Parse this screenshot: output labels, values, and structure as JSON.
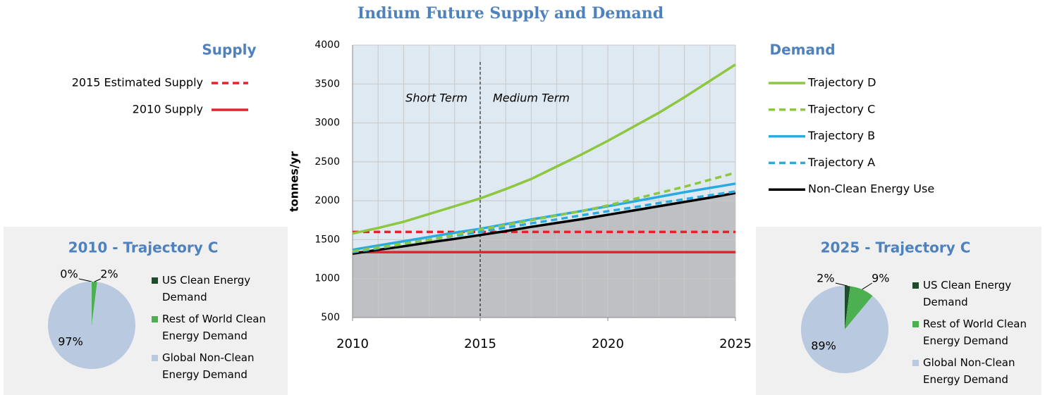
{
  "chart_data": [
    {
      "type": "line",
      "title": "Indium Future Supply and Demand",
      "supply_title": "Supply",
      "demand_title": "Demand",
      "ylabel": "tonnes/yr",
      "x": [
        2010,
        2011,
        2012,
        2013,
        2014,
        2015,
        2016,
        2017,
        2018,
        2019,
        2020,
        2021,
        2022,
        2023,
        2024,
        2025
      ],
      "xlim": [
        2010,
        2025
      ],
      "xticks": [
        2010,
        2015,
        2020,
        2025
      ],
      "ylim": [
        500,
        4000
      ],
      "yticks": [
        500,
        1000,
        1500,
        2000,
        2500,
        3000,
        3500,
        4000
      ],
      "grid": true,
      "divider_x": 2015,
      "annotations": [
        "Short Term",
        "Medium Term"
      ],
      "series": [
        {
          "name": "2015 Estimated Supply",
          "color": "#e0242b",
          "style": "dashed",
          "values": [
            1600,
            1600,
            1600,
            1600,
            1600,
            1600,
            1600,
            1600,
            1600,
            1600,
            1600,
            1600,
            1600,
            1600,
            1600,
            1600
          ]
        },
        {
          "name": "2010 Supply",
          "color": "#e0242b",
          "style": "solid",
          "values": [
            1340,
            1340,
            1340,
            1340,
            1340,
            1340,
            1340,
            1340,
            1340,
            1340,
            1340,
            1340,
            1340,
            1340,
            1340,
            1340
          ]
        },
        {
          "name": "Trajectory D",
          "color": "#8dc63f",
          "style": "solid",
          "values": [
            1580,
            1650,
            1730,
            1830,
            1930,
            2030,
            2150,
            2280,
            2440,
            2600,
            2770,
            2950,
            3130,
            3330,
            3540,
            3750
          ]
        },
        {
          "name": "Trajectory C",
          "color": "#8dc63f",
          "style": "dashed",
          "values": [
            1350,
            1400,
            1450,
            1500,
            1560,
            1630,
            1690,
            1750,
            1810,
            1870,
            1940,
            2020,
            2100,
            2180,
            2270,
            2360
          ]
        },
        {
          "name": "Trajectory B",
          "color": "#29abe2",
          "style": "solid",
          "values": [
            1370,
            1425,
            1480,
            1535,
            1590,
            1640,
            1700,
            1760,
            1815,
            1870,
            1930,
            1990,
            2050,
            2110,
            2165,
            2220
          ]
        },
        {
          "name": "Trajectory A",
          "color": "#29abe2",
          "style": "dashed",
          "values": [
            1340,
            1390,
            1445,
            1500,
            1550,
            1600,
            1655,
            1710,
            1760,
            1815,
            1865,
            1915,
            1970,
            2020,
            2070,
            2120
          ]
        },
        {
          "name": "Non-Clean Energy Use",
          "color": "#000000",
          "style": "solid",
          "area_color": "#bfc0c4",
          "values": [
            1320,
            1370,
            1415,
            1465,
            1510,
            1560,
            1610,
            1665,
            1715,
            1765,
            1820,
            1875,
            1930,
            1985,
            2040,
            2100
          ]
        }
      ]
    },
    {
      "type": "pie",
      "title": "2010 - Trajectory C",
      "categories": [
        "US Clean Energy Demand",
        "Rest of World Clean Energy Demand",
        "Global Non-Clean Energy Demand"
      ],
      "values": [
        0,
        2,
        97
      ],
      "value_labels": [
        "0%",
        "2%",
        "97%"
      ],
      "colors": [
        "#1e4d2b",
        "#4caf50",
        "#b8c9e0"
      ]
    },
    {
      "type": "pie",
      "title": "2025 - Trajectory C",
      "categories": [
        "US Clean Energy Demand",
        "Rest of World Clean Energy Demand",
        "Global Non-Clean Energy Demand"
      ],
      "values": [
        2,
        9,
        89
      ],
      "value_labels": [
        "2%",
        "9%",
        "89%"
      ],
      "colors": [
        "#1e4d2b",
        "#4caf50",
        "#b8c9e0"
      ]
    }
  ]
}
